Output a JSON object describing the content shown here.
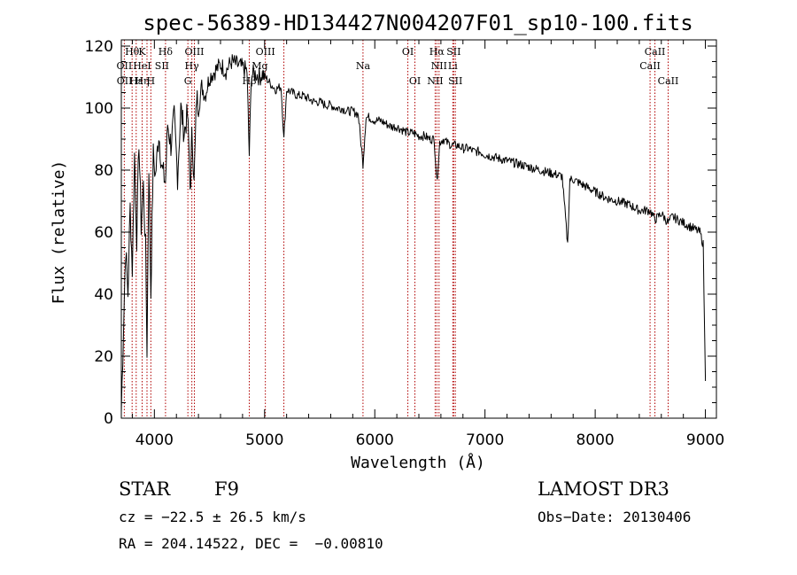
{
  "chart_data": {
    "type": "line",
    "title": "spec-56389-HD134427N004207F01_sp10-100.fits",
    "xlabel": "Wavelength (Å)",
    "ylabel": "Flux (relative)",
    "xlim": [
      3700,
      9100
    ],
    "ylim": [
      0,
      122
    ],
    "x_ticks": [
      4000,
      5000,
      6000,
      7000,
      8000,
      9000
    ],
    "y_ticks": [
      0,
      20,
      40,
      60,
      80,
      100,
      120
    ],
    "series": [
      {
        "name": "flux",
        "x": [
          3700,
          3720,
          3740,
          3760,
          3780,
          3800,
          3820,
          3840,
          3860,
          3880,
          3900,
          3920,
          3933,
          3950,
          3968,
          3990,
          4010,
          4040,
          4070,
          4101,
          4120,
          4150,
          4180,
          4210,
          4240,
          4270,
          4300,
          4330,
          4340,
          4360,
          4383,
          4400,
          4430,
          4460,
          4500,
          4550,
          4600,
          4650,
          4700,
          4750,
          4800,
          4840,
          4861,
          4880,
          4920,
          4957,
          4980,
          5007,
          5050,
          5100,
          5150,
          5175,
          5200,
          5250,
          5300,
          5350,
          5400,
          5450,
          5500,
          5550,
          5600,
          5650,
          5700,
          5750,
          5800,
          5850,
          5893,
          5920,
          5950,
          6000,
          6050,
          6100,
          6150,
          6200,
          6250,
          6300,
          6350,
          6400,
          6450,
          6500,
          6540,
          6563,
          6590,
          6620,
          6650,
          6700,
          6750,
          6800,
          6850,
          6900,
          6950,
          7000,
          7100,
          7200,
          7300,
          7400,
          7500,
          7600,
          7700,
          7750,
          7770,
          7800,
          7900,
          8000,
          8100,
          8200,
          8300,
          8400,
          8498,
          8542,
          8600,
          8662,
          8700,
          8750,
          8800,
          8850,
          8900,
          8950,
          8980,
          9000
        ],
        "y": [
          2,
          30,
          55,
          40,
          68,
          48,
          85,
          58,
          90,
          62,
          75,
          55,
          22,
          82,
          40,
          85,
          78,
          92,
          80,
          76,
          95,
          88,
          97,
          78,
          100,
          92,
          98,
          72,
          96,
          75,
          104,
          100,
          107,
          104,
          110,
          112,
          114,
          112,
          115,
          114,
          113,
          112,
          85,
          111,
          111,
          110,
          111,
          110,
          108,
          106,
          107,
          90,
          106,
          105,
          104,
          104,
          103,
          102,
          102,
          101,
          101,
          100,
          100,
          99,
          99,
          98,
          82,
          97,
          97,
          96,
          96,
          95,
          94,
          94,
          93,
          92,
          92,
          91,
          91,
          90,
          90,
          76,
          89,
          90,
          89,
          88,
          88,
          87,
          87,
          86,
          86,
          85,
          84,
          83,
          82,
          81,
          80,
          79,
          78,
          56,
          77,
          77,
          75,
          73,
          71,
          70,
          69,
          67,
          67,
          64,
          66,
          63,
          65,
          64,
          63,
          62,
          61,
          60,
          56,
          12
        ]
      }
    ],
    "line_markers": [
      {
        "label": "Hθ",
        "wl": 3798,
        "row": 0
      },
      {
        "label": "OII",
        "wl": 3727,
        "row": 1
      },
      {
        "label": "OII",
        "wl": 3729,
        "row": 2
      },
      {
        "label": "Hε",
        "wl": 3835,
        "row": 2
      },
      {
        "label": "K",
        "wl": 3889,
        "row": 0
      },
      {
        "label": "HeI",
        "wl": 3889,
        "row": 1
      },
      {
        "label": "Hη",
        "wl": 3889,
        "row": 2
      },
      {
        "label": "H",
        "wl": 3968,
        "row": 2
      },
      {
        "label": "SII",
        "wl": 4069,
        "row": 1
      },
      {
        "label": "Hδ",
        "wl": 4101,
        "row": 0
      },
      {
        "label": "OIII",
        "wl": 4363,
        "row": 0
      },
      {
        "label": "Hγ",
        "wl": 4340,
        "row": 1
      },
      {
        "label": "G",
        "wl": 4304,
        "row": 2
      },
      {
        "label": "OIII",
        "wl": 5007,
        "row": 0
      },
      {
        "label": "Mg",
        "wl": 4957,
        "row": 1
      },
      {
        "label": "Hβ",
        "wl": 4861,
        "row": 2
      },
      {
        "label": "Na",
        "wl": 5893,
        "row": 1
      },
      {
        "label": "OI",
        "wl": 6300,
        "row": 0
      },
      {
        "label": "OI",
        "wl": 6364,
        "row": 2
      },
      {
        "label": "Hα",
        "wl": 6563,
        "row": 0
      },
      {
        "label": "SII",
        "wl": 6716,
        "row": 0
      },
      {
        "label": "NII",
        "wl": 6583,
        "row": 1
      },
      {
        "label": "Li",
        "wl": 6708,
        "row": 1
      },
      {
        "label": "NII",
        "wl": 6548,
        "row": 2
      },
      {
        "label": "SII",
        "wl": 6731,
        "row": 2
      },
      {
        "label": "CaII",
        "wl": 8542,
        "row": 0
      },
      {
        "label": "CaII",
        "wl": 8498,
        "row": 1
      },
      {
        "label": "CaII",
        "wl": 8662,
        "row": 2
      }
    ],
    "marker_line_wavelengths": [
      3727,
      3798,
      3835,
      3889,
      3933,
      3968,
      4101,
      4304,
      4340,
      4363,
      4861,
      5007,
      5175,
      5893,
      6300,
      6364,
      6548,
      6563,
      6583,
      6708,
      6716,
      6731,
      8498,
      8542,
      8662
    ]
  },
  "info": {
    "object_class": "STAR",
    "subclass": "F9",
    "survey": "LAMOST DR3",
    "cz": "cz = −22.5 ± 26.5 km/s",
    "obs_date": "Obs−Date: 20130406",
    "coords": "RA = 204.14522, DEC =  −0.00810"
  },
  "colors": {
    "spectrum": "#000000",
    "marker_line": "#b00000",
    "axes": "#000000"
  }
}
